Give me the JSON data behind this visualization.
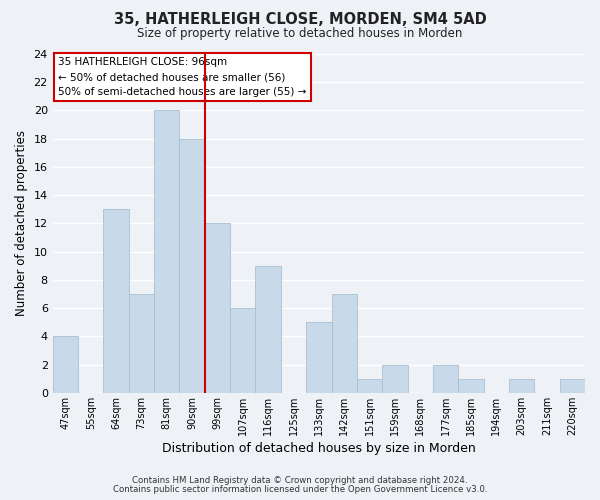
{
  "title": "35, HATHERLEIGH CLOSE, MORDEN, SM4 5AD",
  "subtitle": "Size of property relative to detached houses in Morden",
  "xlabel": "Distribution of detached houses by size in Morden",
  "ylabel": "Number of detached properties",
  "bar_color": "#c8daea",
  "bar_edge_color": "#a8bfd0",
  "categories": [
    "47sqm",
    "55sqm",
    "64sqm",
    "73sqm",
    "81sqm",
    "90sqm",
    "99sqm",
    "107sqm",
    "116sqm",
    "125sqm",
    "133sqm",
    "142sqm",
    "151sqm",
    "159sqm",
    "168sqm",
    "177sqm",
    "185sqm",
    "194sqm",
    "203sqm",
    "211sqm",
    "220sqm"
  ],
  "values": [
    4,
    0,
    13,
    7,
    20,
    18,
    12,
    6,
    9,
    0,
    5,
    7,
    1,
    2,
    0,
    2,
    1,
    0,
    1,
    0,
    1
  ],
  "ylim": [
    0,
    24
  ],
  "yticks": [
    0,
    2,
    4,
    6,
    8,
    10,
    12,
    14,
    16,
    18,
    20,
    22,
    24
  ],
  "vline_x": 5.5,
  "vline_color": "#cc0000",
  "annotation_title": "35 HATHERLEIGH CLOSE: 96sqm",
  "annotation_line1": "← 50% of detached houses are smaller (56)",
  "annotation_line2": "50% of semi-detached houses are larger (55) →",
  "footer1": "Contains HM Land Registry data © Crown copyright and database right 2024.",
  "footer2": "Contains public sector information licensed under the Open Government Licence v3.0.",
  "background_color": "#eef2f7",
  "grid_color": "#ffffff"
}
